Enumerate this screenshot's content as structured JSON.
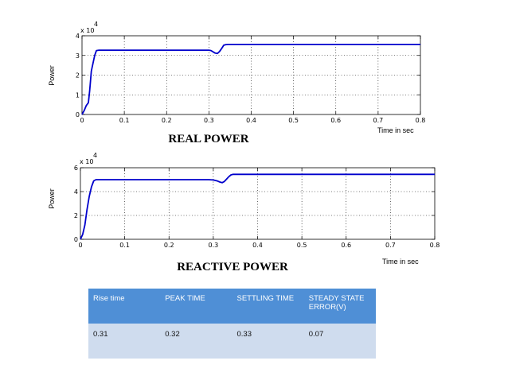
{
  "chart_data": [
    {
      "type": "line",
      "title": "REAL POWER",
      "xlabel": "Time in sec",
      "ylabel": "Power",
      "exponent_label": "x 10",
      "exponent_power": "4",
      "xlim": [
        0,
        0.8
      ],
      "ylim": [
        0,
        4
      ],
      "x_ticks": [
        "0",
        "0.1",
        "0.2",
        "0.3",
        "0.4",
        "0.5",
        "0.6",
        "0.7",
        "0.8"
      ],
      "y_ticks": [
        "0",
        "1",
        "2",
        "3",
        "4"
      ],
      "grid": "dotted",
      "series": [
        {
          "color": "#0000cc",
          "x": [
            0,
            0.005,
            0.01,
            0.015,
            0.018,
            0.022,
            0.026,
            0.03,
            0.034,
            0.04,
            0.1,
            0.2,
            0.3,
            0.305,
            0.31,
            0.315,
            0.32,
            0.325,
            0.33,
            0.335,
            0.34,
            0.345,
            0.4,
            0.5,
            0.6,
            0.7,
            0.8
          ],
          "y": [
            0,
            0.2,
            0.45,
            0.6,
            1.2,
            2.2,
            2.6,
            3.0,
            3.25,
            3.27,
            3.27,
            3.27,
            3.27,
            3.25,
            3.18,
            3.12,
            3.1,
            3.2,
            3.35,
            3.52,
            3.55,
            3.56,
            3.56,
            3.56,
            3.56,
            3.56,
            3.56
          ]
        }
      ]
    },
    {
      "type": "line",
      "title": "REACTIVE POWER",
      "xlabel": "Time in sec",
      "ylabel": "Power",
      "exponent_label": "x 10",
      "exponent_power": "4",
      "xlim": [
        0,
        0.8
      ],
      "ylim": [
        0,
        6
      ],
      "x_ticks": [
        "0",
        "0.1",
        "0.2",
        "0.3",
        "0.4",
        "0.5",
        "0.6",
        "0.7",
        "0.8"
      ],
      "y_ticks": [
        "0",
        "2",
        "4",
        "6"
      ],
      "grid": "dotted",
      "series": [
        {
          "color": "#0000cc",
          "x": [
            0,
            0.005,
            0.01,
            0.015,
            0.02,
            0.025,
            0.03,
            0.035,
            0.04,
            0.1,
            0.2,
            0.29,
            0.3,
            0.31,
            0.315,
            0.32,
            0.325,
            0.33,
            0.335,
            0.34,
            0.345,
            0.35,
            0.4,
            0.5,
            0.6,
            0.7,
            0.8
          ],
          "y": [
            0,
            0.4,
            1.2,
            2.5,
            3.6,
            4.4,
            4.9,
            5.0,
            5.0,
            5.0,
            5.0,
            5.0,
            4.97,
            4.88,
            4.8,
            4.75,
            4.85,
            5.05,
            5.25,
            5.4,
            5.45,
            5.45,
            5.45,
            5.45,
            5.45,
            5.45,
            5.45
          ]
        }
      ]
    }
  ],
  "results_table": {
    "headers": [
      "Rise time",
      "PEAK TIME",
      "SETTLING TIME",
      "STEADY STATE ERROR(V)"
    ],
    "row": [
      "0.31",
      "0.32",
      "0.33",
      "0.07"
    ]
  }
}
